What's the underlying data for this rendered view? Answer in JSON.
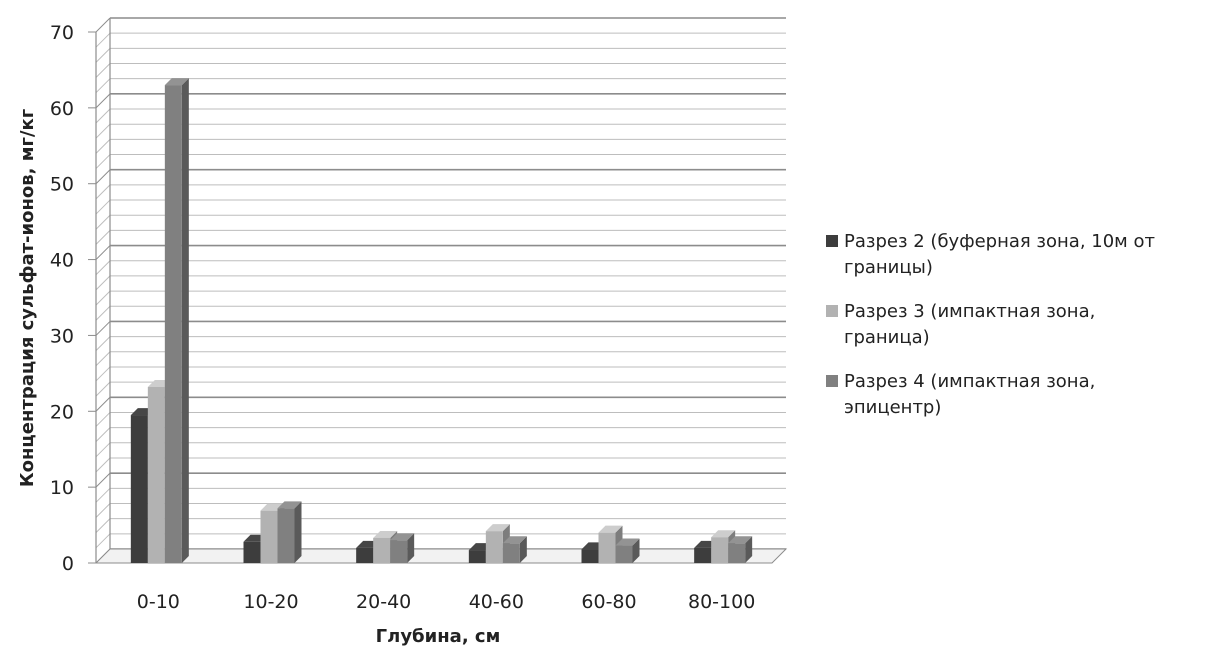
{
  "chart_data": {
    "type": "bar",
    "title": "",
    "xlabel": "Глубина, см",
    "ylabel": "Концентрация сульфат-ионов, мг/кг",
    "categories": [
      "0-10",
      "10-20",
      "20-40",
      "40-60",
      "60-80",
      "80-100"
    ],
    "yticks": [
      "0",
      "10",
      "20",
      "30",
      "40",
      "50",
      "60",
      "70"
    ],
    "ylim": [
      0,
      70
    ],
    "grid": true,
    "legend_position": "right",
    "series": [
      {
        "name": "Разрез 2 (буферная зона, 10м от границы)",
        "values": [
          19.5,
          2.8,
          2.0,
          1.7,
          1.8,
          2.0
        ],
        "color": "#3d3d3d"
      },
      {
        "name": "Разрез 3 (импактная зона, граница)",
        "values": [
          23.2,
          6.9,
          3.3,
          4.2,
          4.0,
          3.4
        ],
        "color": "#b2b2b2"
      },
      {
        "name": "Разрез 4 (импактная зона, эпицентр)",
        "values": [
          63.0,
          7.2,
          3.0,
          2.6,
          2.3,
          2.6
        ],
        "color": "#808080"
      }
    ]
  }
}
